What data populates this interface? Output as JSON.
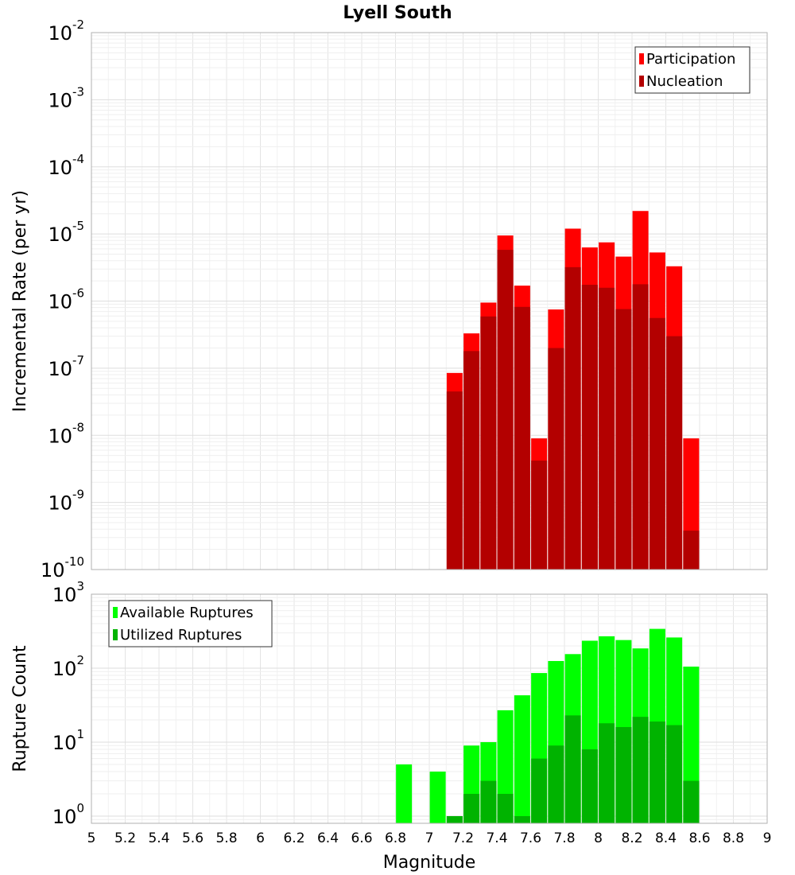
{
  "chart_data": [
    {
      "type": "bar",
      "title": "Lyell South",
      "ylabel": "Incremental Rate (per yr)",
      "yscale": "log",
      "ylim": [
        1e-10,
        0.01
      ],
      "xlim": [
        5,
        9
      ],
      "ytick_base": "10",
      "ytick_exponents": [
        "-10",
        "-9",
        "-8",
        "-7",
        "-6",
        "-5",
        "-4",
        "-3",
        "-2"
      ],
      "x": [
        7.15,
        7.25,
        7.35,
        7.45,
        7.55,
        7.65,
        7.75,
        7.85,
        7.95,
        8.05,
        8.15,
        8.25,
        8.35,
        8.45,
        8.55
      ],
      "series": [
        {
          "name": "Participation",
          "color": "#ff0000",
          "values": [
            8.5e-08,
            3.3e-07,
            9.5e-07,
            9.5e-06,
            1.7e-06,
            9e-09,
            7.5e-07,
            1.2e-05,
            6.3e-06,
            7.5e-06,
            4.6e-06,
            2.2e-05,
            5.3e-06,
            3.3e-06,
            9e-09
          ]
        },
        {
          "name": "Nucleation",
          "color": "#b30000",
          "values": [
            4.5e-08,
            1.8e-07,
            5.9e-07,
            5.8e-06,
            8.2e-07,
            4.2e-09,
            2e-07,
            3.2e-06,
            1.75e-06,
            1.58e-06,
            7.6e-07,
            1.78e-06,
            5.6e-07,
            3e-07,
            3.8e-10
          ]
        }
      ],
      "legend_position": "top-right",
      "grid": true
    },
    {
      "type": "bar",
      "xlabel": "Magnitude",
      "ylabel": "Rupture Count",
      "yscale": "log",
      "ylim": [
        0.8,
        1000
      ],
      "xlim": [
        5,
        9
      ],
      "xticks": [
        "5",
        "5.2",
        "5.4",
        "5.6",
        "5.8",
        "6",
        "6.2",
        "6.4",
        "6.6",
        "6.8",
        "7",
        "7.2",
        "7.4",
        "7.6",
        "7.8",
        "8",
        "8.2",
        "8.4",
        "8.6",
        "8.8",
        "9"
      ],
      "ytick_base": "10",
      "ytick_exponents": [
        "0",
        "1",
        "2",
        "3"
      ],
      "series": [
        {
          "name": "Available Ruptures",
          "color": "#00ff00",
          "x": [
            6.85,
            7.05,
            7.15,
            7.25,
            7.35,
            7.45,
            7.55,
            7.65,
            7.75,
            7.85,
            7.95,
            8.05,
            8.15,
            8.25,
            8.35,
            8.45,
            8.55
          ],
          "values": [
            5,
            4,
            1,
            9,
            10,
            27,
            43,
            86,
            125,
            155,
            235,
            270,
            240,
            185,
            340,
            260,
            105
          ]
        },
        {
          "name": "Utilized Ruptures",
          "color": "#00b300",
          "x": [
            7.15,
            7.25,
            7.35,
            7.45,
            7.55,
            7.65,
            7.75,
            7.85,
            7.95,
            8.05,
            8.15,
            8.25,
            8.35,
            8.45,
            8.55
          ],
          "values": [
            1,
            2,
            3,
            2,
            1,
            6,
            9,
            23,
            8,
            18,
            16,
            22,
            19,
            17,
            3
          ]
        }
      ],
      "legend_position": "top-left",
      "grid": true
    }
  ]
}
